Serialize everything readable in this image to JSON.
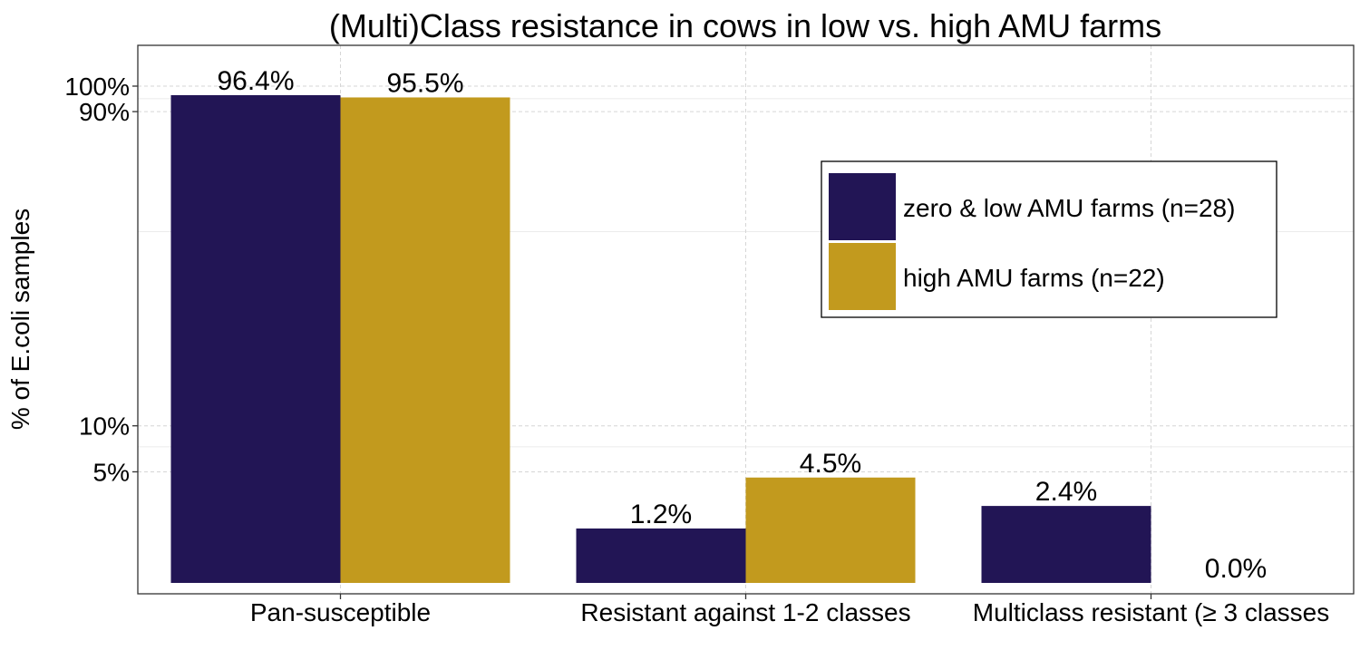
{
  "chart_data": {
    "type": "bar",
    "title": "(Multi)Class resistance in cows in low vs. high AMU farms",
    "xlabel": "",
    "ylabel": "% of E.coli samples",
    "categories": [
      "Pan-susceptible",
      "Resistant against 1-2 classes",
      "Multiclass resistant (≥ 3 classes"
    ],
    "series": [
      {
        "name": "zero & low AMU farms (n=28)",
        "values": [
          96.4,
          1.2,
          2.4
        ],
        "labels": [
          "96.4%",
          "1.2%",
          "2.4%"
        ],
        "color": "#221555"
      },
      {
        "name": "high AMU farms (n=22)",
        "values": [
          95.5,
          4.5,
          0.0
        ],
        "labels": [
          "95.5%",
          "4.5%",
          "0.0%"
        ],
        "color": "#C29A1E"
      }
    ],
    "yscale": "sqrt",
    "ylim": [
      0,
      104
    ],
    "yticks": [
      5,
      10,
      90,
      100
    ],
    "ytick_labels": [
      "5%",
      "10%",
      "90%",
      "100%"
    ],
    "grid": true,
    "legend_position": "right"
  }
}
